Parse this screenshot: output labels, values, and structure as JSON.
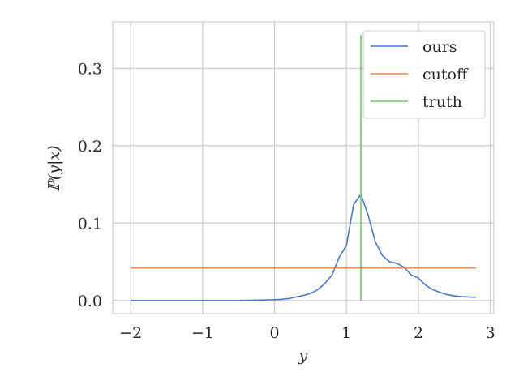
{
  "chart_data": {
    "type": "line",
    "xlabel": "y",
    "ylabel": "ℙ(y|x)",
    "xlim": [
      -2.25,
      3.05
    ],
    "ylim": [
      -0.017,
      0.36
    ],
    "x_ticks": [
      -2,
      -1,
      0,
      1,
      2,
      3
    ],
    "x_tick_labels": [
      "−2",
      "−1",
      "0",
      "1",
      "2",
      "3"
    ],
    "y_ticks": [
      0.0,
      0.1,
      0.2,
      0.3
    ],
    "y_tick_labels": [
      "0.0",
      "0.1",
      "0.2",
      "0.3"
    ],
    "grid": true,
    "legend_position": "top-right",
    "series": [
      {
        "name": "ours",
        "color": "#4878d0",
        "x": [
          -2.0,
          -1.5,
          -1.0,
          -0.5,
          -0.2,
          0.0,
          0.1,
          0.2,
          0.3,
          0.4,
          0.5,
          0.6,
          0.7,
          0.8,
          0.9,
          1.0,
          1.1,
          1.2,
          1.3,
          1.4,
          1.5,
          1.6,
          1.7,
          1.8,
          1.9,
          2.0,
          2.1,
          2.2,
          2.3,
          2.4,
          2.5,
          2.6,
          2.7,
          2.8
        ],
        "y": [
          0.0,
          0.0,
          0.0,
          0.0,
          0.0005,
          0.001,
          0.0015,
          0.0025,
          0.0045,
          0.0065,
          0.009,
          0.014,
          0.022,
          0.033,
          0.056,
          0.071,
          0.124,
          0.137,
          0.111,
          0.076,
          0.058,
          0.05,
          0.048,
          0.043,
          0.033,
          0.029,
          0.02,
          0.014,
          0.0105,
          0.0075,
          0.006,
          0.005,
          0.0045,
          0.004
        ]
      },
      {
        "name": "cutoff",
        "color": "#ee854a",
        "x": [
          -2.0,
          2.8
        ],
        "y": [
          0.042,
          0.042
        ]
      },
      {
        "name": "truth",
        "color": "#6acc64",
        "x": [
          1.2,
          1.2
        ],
        "y": [
          0.0,
          0.343
        ]
      }
    ]
  }
}
